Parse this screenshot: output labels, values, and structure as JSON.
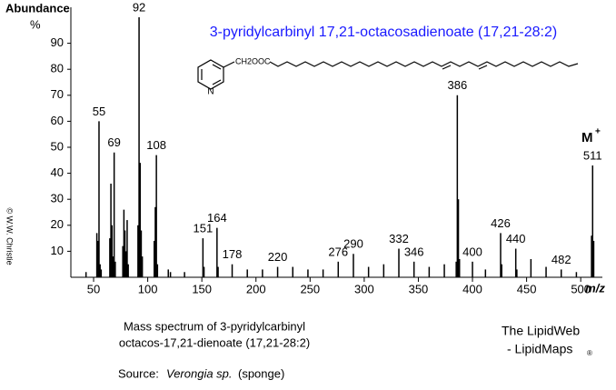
{
  "chart_data": {
    "type": "spectrum",
    "title": "3-pyridylcarbinyl 17,21-octacosadienoate (17,21-28:2)",
    "y_label": "Abundance",
    "y_unit": "%",
    "x_label": "m/z",
    "molecular_ion": "M",
    "molecular_ion_sup": "+",
    "structure_group": "CH2OOC",
    "structure_atom": "N",
    "copyright": "© W.W. Christie",
    "caption": [
      "Mass spectrum of 3-pyridylcarbinyl",
      "octacos-17,21-dienoate (17,21-28:2)"
    ],
    "source_prefix": "Source:",
    "source_species": "Verongia sp.",
    "source_suffix": "(sponge)",
    "credit": [
      "The LipidWeb",
      "- LipidMaps"
    ],
    "credit_mark": "®",
    "color": "#000000",
    "title_color": "#1a1aff",
    "xlim": [
      29,
      520
    ],
    "xticks": [
      50,
      100,
      150,
      200,
      250,
      300,
      350,
      400,
      450,
      500
    ],
    "ylim": [
      0,
      100
    ],
    "yticks": [
      10,
      20,
      30,
      40,
      50,
      60,
      70,
      80,
      90
    ],
    "x": [
      43,
      53,
      54,
      55,
      56,
      57,
      65,
      66,
      67,
      68,
      69,
      70,
      77,
      78,
      79,
      80,
      81,
      82,
      91,
      92,
      93,
      94,
      95,
      106,
      107,
      108,
      109,
      119,
      121,
      134,
      151,
      152,
      164,
      165,
      178,
      192,
      206,
      220,
      234,
      248,
      262,
      276,
      290,
      304,
      318,
      332,
      346,
      360,
      374,
      385,
      386,
      387,
      388,
      400,
      412,
      426,
      427,
      440,
      441,
      454,
      468,
      482,
      496,
      510,
      511,
      512
    ],
    "values": [
      2,
      17,
      14,
      60,
      5,
      3,
      15,
      36,
      20,
      8,
      48,
      6,
      12,
      26,
      18,
      10,
      22,
      5,
      20,
      100,
      44,
      18,
      8,
      14,
      27,
      47,
      5,
      3,
      2,
      2,
      15,
      4,
      19,
      4,
      5,
      3,
      3,
      4,
      4,
      3,
      3,
      6,
      9,
      4,
      5,
      11,
      6,
      4,
      5,
      6,
      70,
      30,
      7,
      6,
      3,
      17,
      5,
      11,
      3,
      7,
      4,
      3,
      2,
      16,
      43,
      14
    ],
    "peak_labels": [
      null,
      null,
      null,
      "55",
      null,
      null,
      null,
      null,
      null,
      null,
      "69",
      null,
      null,
      null,
      null,
      null,
      null,
      null,
      null,
      "92",
      null,
      null,
      null,
      null,
      null,
      "108",
      null,
      null,
      null,
      null,
      "151",
      null,
      "164",
      null,
      "178",
      null,
      null,
      "220",
      null,
      null,
      null,
      "276",
      "290",
      null,
      null,
      "332",
      "346",
      null,
      null,
      null,
      "386",
      null,
      null,
      "400",
      null,
      "426",
      null,
      "440",
      null,
      null,
      null,
      "482",
      null,
      null,
      "511",
      null
    ]
  }
}
